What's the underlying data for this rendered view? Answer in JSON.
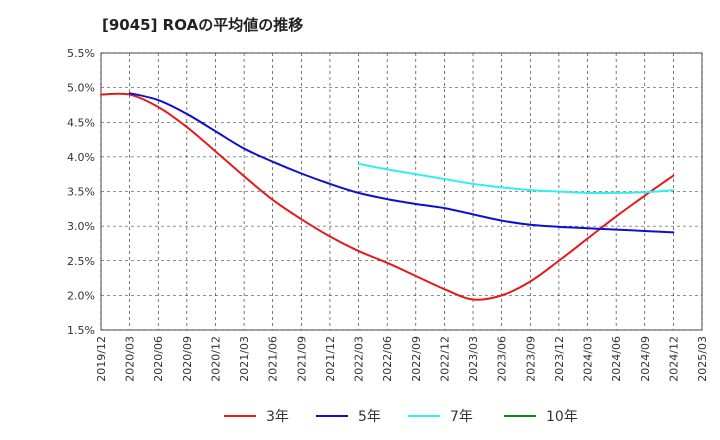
{
  "chart_data": {
    "type": "line",
    "title": "[9045]  ROAの平均値の推移",
    "xlabel": "",
    "ylabel": "",
    "ylim": [
      1.5,
      5.5
    ],
    "yticks": [
      "5.5%",
      "5.0%",
      "4.5%",
      "4.0%",
      "3.5%",
      "3.0%",
      "2.5%",
      "2.0%",
      "1.5%"
    ],
    "yticks_values": [
      5.5,
      5.0,
      4.5,
      4.0,
      3.5,
      3.0,
      2.5,
      2.0,
      1.5
    ],
    "xticks": [
      "2019/12",
      "2020/03",
      "2020/06",
      "2020/09",
      "2020/12",
      "2021/03",
      "2021/06",
      "2021/09",
      "2021/12",
      "2022/03",
      "2022/06",
      "2022/09",
      "2022/12",
      "2023/03",
      "2023/06",
      "2023/09",
      "2023/12",
      "2024/03",
      "2024/06",
      "2024/09",
      "2024/12",
      "2025/03"
    ],
    "grid": true,
    "legend_position": "bottom",
    "series": [
      {
        "name": "3年",
        "color": "#e31a1c",
        "x": [
          "2019/12",
          "2020/03",
          "2020/06",
          "2020/09",
          "2020/12",
          "2021/03",
          "2021/06",
          "2021/09",
          "2021/12",
          "2022/03",
          "2022/06",
          "2022/09",
          "2022/12",
          "2023/03",
          "2023/06",
          "2023/09",
          "2023/12",
          "2024/03",
          "2024/06",
          "2024/09",
          "2024/12"
        ],
        "values": [
          4.9,
          4.9,
          4.72,
          4.43,
          4.08,
          3.72,
          3.38,
          3.1,
          2.85,
          2.64,
          2.47,
          2.28,
          2.09,
          1.94,
          2.0,
          2.2,
          2.5,
          2.82,
          3.14,
          3.44,
          3.73
        ]
      },
      {
        "name": "5年",
        "color": "#1010cc",
        "x": [
          "2020/03",
          "2020/06",
          "2020/09",
          "2020/12",
          "2021/03",
          "2021/06",
          "2021/09",
          "2021/12",
          "2022/03",
          "2022/06",
          "2022/09",
          "2022/12",
          "2023/03",
          "2023/06",
          "2023/09",
          "2023/12",
          "2024/03",
          "2024/06",
          "2024/09",
          "2024/12"
        ],
        "values": [
          4.92,
          4.82,
          4.62,
          4.37,
          4.12,
          3.93,
          3.76,
          3.61,
          3.48,
          3.39,
          3.32,
          3.26,
          3.17,
          3.08,
          3.02,
          2.99,
          2.97,
          2.95,
          2.93,
          2.91
        ]
      },
      {
        "name": "7年",
        "color": "#33eeee",
        "x": [
          "2022/03",
          "2022/06",
          "2022/09",
          "2022/12",
          "2023/03",
          "2023/06",
          "2023/09",
          "2023/12",
          "2024/03",
          "2024/06",
          "2024/09",
          "2024/12"
        ],
        "values": [
          3.9,
          3.82,
          3.75,
          3.68,
          3.61,
          3.56,
          3.52,
          3.5,
          3.48,
          3.48,
          3.49,
          3.52
        ]
      },
      {
        "name": "10年",
        "color": "#118811",
        "x": [],
        "values": []
      }
    ]
  }
}
